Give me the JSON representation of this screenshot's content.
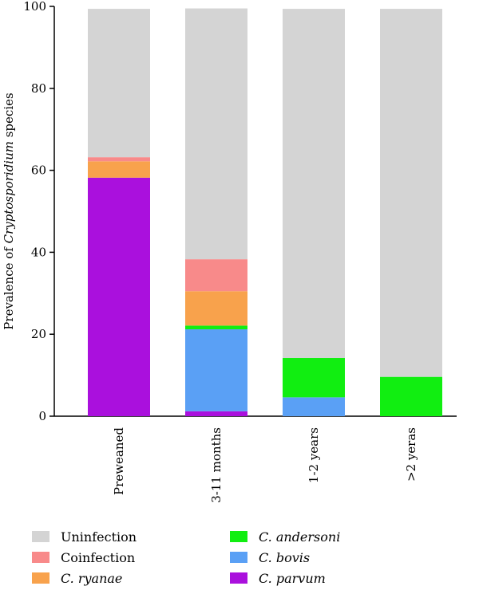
{
  "chart_data": {
    "type": "bar",
    "stacked": true,
    "categories": [
      "Preweaned",
      "3-11 months",
      "1-2 years",
      ">2 yeras"
    ],
    "ylabel_prefix": "Prevalence of ",
    "ylabel_italic": "Cryptosporidium",
    "ylabel_suffix": " species",
    "ylim": [
      0,
      100
    ],
    "yticks": [
      "0",
      "20",
      "40",
      "60",
      "80",
      "100"
    ],
    "grid": false,
    "legend_position": "bottom",
    "series": [
      {
        "name": "C. parvum",
        "italic": true,
        "color": "#aa10dd",
        "values": [
          58.2,
          1.2,
          0,
          0
        ]
      },
      {
        "name": "C. bovis",
        "italic": true,
        "color": "#5aa0f5",
        "values": [
          0,
          20.0,
          4.6,
          0
        ]
      },
      {
        "name": "C. andersoni",
        "italic": true,
        "color": "#11ee11",
        "values": [
          0,
          0.9,
          9.6,
          9.6
        ]
      },
      {
        "name": "C. ryanae",
        "italic": true,
        "color": "#f8a24c",
        "values": [
          4.0,
          8.4,
          0,
          0
        ]
      },
      {
        "name": "Coinfection",
        "italic": false,
        "color": "#f88a8a",
        "values": [
          1.0,
          7.8,
          0,
          0
        ]
      },
      {
        "name": "Uninfection",
        "italic": false,
        "color": "#d4d4d4",
        "values": [
          36.2,
          61.2,
          85.2,
          89.8
        ]
      }
    ],
    "legend_order_left": [
      "Uninfection",
      "Coinfection",
      "C. ryanae"
    ],
    "legend_order_right": [
      "C. andersoni",
      "C. bovis",
      "C. parvum"
    ]
  }
}
